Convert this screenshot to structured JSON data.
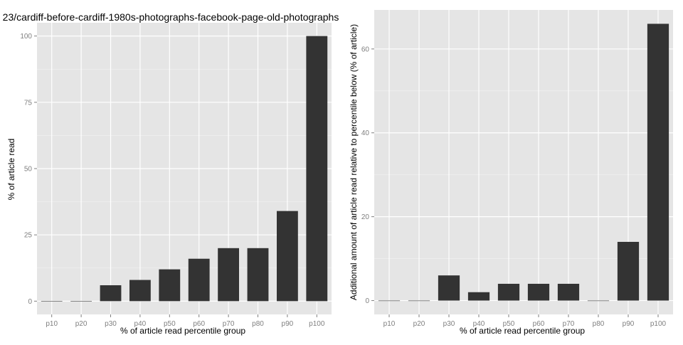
{
  "chart_data": [
    {
      "type": "bar",
      "title": "23/cardiff-before-cardiff-1980s-photographs-facebook-page-old-photographs",
      "xlabel": "% of article read percentile group",
      "ylabel": "% of article read",
      "categories": [
        "p10",
        "p20",
        "p30",
        "p40",
        "p50",
        "p60",
        "p70",
        "p80",
        "p90",
        "p100"
      ],
      "values": [
        0,
        0,
        6,
        8,
        12,
        16,
        20,
        20,
        34,
        100
      ],
      "ylim": [
        -5,
        105
      ],
      "yticks": [
        0,
        25,
        50,
        75,
        100
      ],
      "ytick_labels": [
        "0",
        "25",
        "50",
        "75",
        "100"
      ],
      "grid": true,
      "colors": {
        "bar": "#333333",
        "panel": "#e5e5e5",
        "grid": "#ffffff"
      }
    },
    {
      "type": "bar",
      "title": "",
      "xlabel": "% of article read percentile group",
      "ylabel": "Additional amount of article read relative to percentile below (% of article)",
      "categories": [
        "p10",
        "p20",
        "p30",
        "p40",
        "p50",
        "p60",
        "p70",
        "p80",
        "p90",
        "p100"
      ],
      "values": [
        0,
        0,
        6,
        2,
        4,
        4,
        4,
        0,
        14,
        66
      ],
      "ylim": [
        -3.3,
        69.3
      ],
      "yticks": [
        0,
        20,
        40,
        60
      ],
      "ytick_labels": [
        "0",
        "20",
        "40",
        "60"
      ],
      "grid": true,
      "colors": {
        "bar": "#333333",
        "panel": "#e5e5e5",
        "grid": "#ffffff"
      }
    }
  ]
}
